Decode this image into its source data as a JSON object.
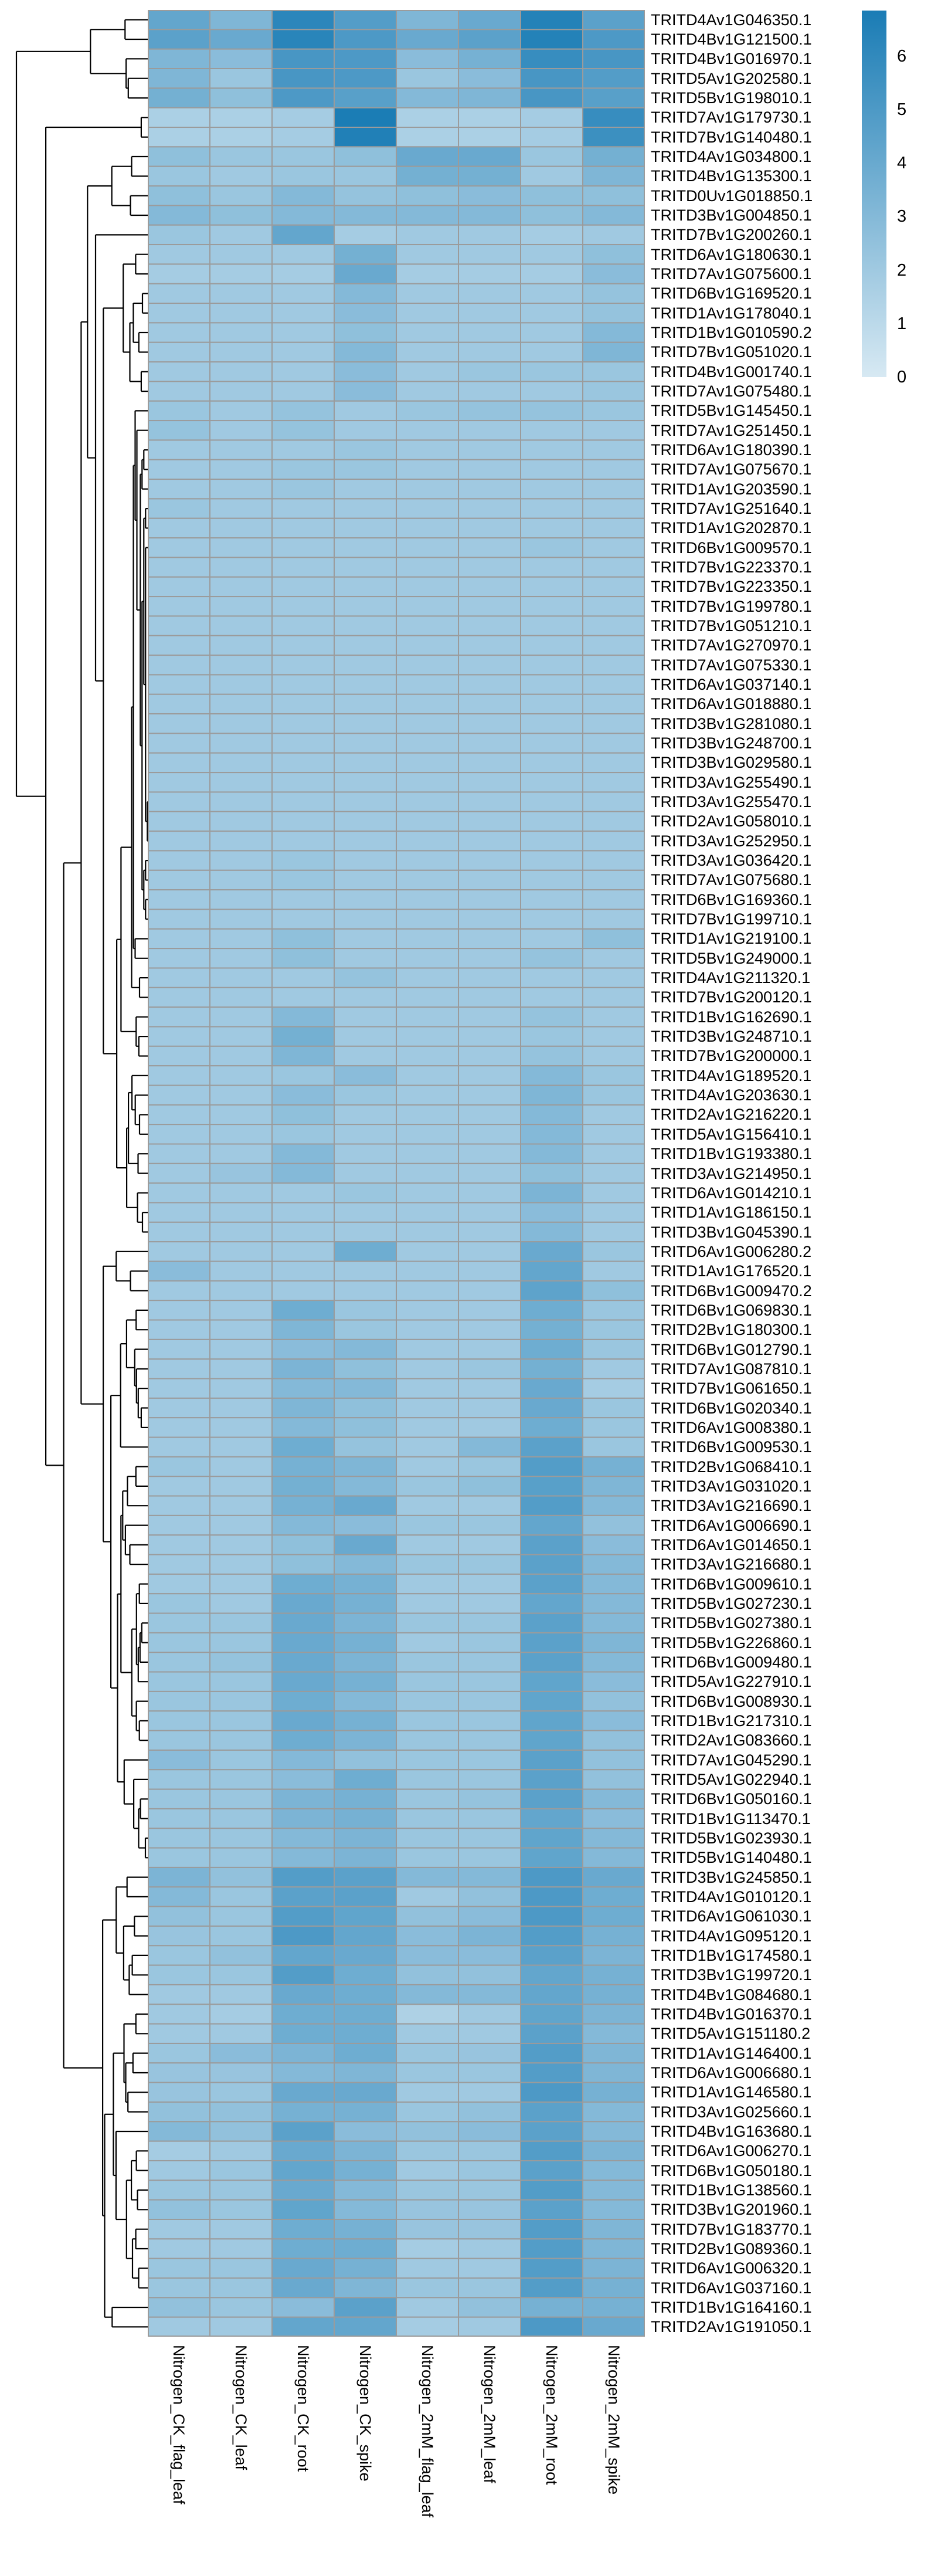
{
  "chart_data": {
    "type": "heatmap",
    "title": "",
    "xlabel": "",
    "ylabel": "",
    "grid": true,
    "grid_line_color": "#9b9b9b",
    "row_dendrogram": true,
    "col_dendrogram": false,
    "legend_position": "right-top",
    "color_scale": {
      "min": 0,
      "max": 6.85,
      "low": "#d7e9f3",
      "high": "#1a7cb5"
    },
    "legend": {
      "ticks": [
        6,
        5,
        4,
        3,
        2,
        1,
        0
      ]
    },
    "columns": [
      "Nitrogen_CK_flag_leaf",
      "Nitrogen_CK_leaf",
      "Nitrogen_CK_root",
      "Nitrogen_CK_spike",
      "Nitrogen_2mM_flag_leaf",
      "Nitrogen_2mM_leaf",
      "Nitrogen_2mM_root",
      "Nitrogen_2mM_spike"
    ],
    "rows": [
      "TRITD4Av1G046350.1",
      "TRITD4Bv1G121500.1",
      "TRITD4Bv1G016970.1",
      "TRITD5Av1G202580.1",
      "TRITD5Bv1G198010.1",
      "TRITD7Av1G179730.1",
      "TRITD7Bv1G140480.1",
      "TRITD4Av1G034800.1",
      "TRITD4Bv1G135300.1",
      "TRITD0Uv1G018850.1",
      "TRITD3Bv1G004850.1",
      "TRITD7Bv1G200260.1",
      "TRITD6Av1G180630.1",
      "TRITD7Av1G075600.1",
      "TRITD6Bv1G169520.1",
      "TRITD1Av1G178040.1",
      "TRITD1Bv1G010590.2",
      "TRITD7Bv1G051020.1",
      "TRITD4Bv1G001740.1",
      "TRITD7Av1G075480.1",
      "TRITD5Bv1G145450.1",
      "TRITD7Av1G251450.1",
      "TRITD6Av1G180390.1",
      "TRITD7Av1G075670.1",
      "TRITD1Av1G203590.1",
      "TRITD7Av1G251640.1",
      "TRITD1Av1G202870.1",
      "TRITD6Bv1G009570.1",
      "TRITD7Bv1G223370.1",
      "TRITD7Bv1G223350.1",
      "TRITD7Bv1G199780.1",
      "TRITD7Bv1G051210.1",
      "TRITD7Av1G270970.1",
      "TRITD7Av1G075330.1",
      "TRITD6Av1G037140.1",
      "TRITD6Av1G018880.1",
      "TRITD3Bv1G281080.1",
      "TRITD3Bv1G248700.1",
      "TRITD3Bv1G029580.1",
      "TRITD3Av1G255490.1",
      "TRITD3Av1G255470.1",
      "TRITD2Av1G058010.1",
      "TRITD3Av1G252950.1",
      "TRITD3Av1G036420.1",
      "TRITD7Av1G075680.1",
      "TRITD6Bv1G169360.1",
      "TRITD7Bv1G199710.1",
      "TRITD1Av1G219100.1",
      "TRITD5Bv1G249000.1",
      "TRITD4Av1G211320.1",
      "TRITD7Bv1G200120.1",
      "TRITD1Bv1G162690.1",
      "TRITD3Bv1G248710.1",
      "TRITD7Bv1G200000.1",
      "TRITD4Av1G189520.1",
      "TRITD4Av1G203630.1",
      "TRITD2Av1G216220.1",
      "TRITD5Av1G156410.1",
      "TRITD1Bv1G193380.1",
      "TRITD3Av1G214950.1",
      "TRITD6Av1G014210.1",
      "TRITD1Av1G186150.1",
      "TRITD3Bv1G045390.1",
      "TRITD6Av1G006280.2",
      "TRITD1Av1G176520.1",
      "TRITD6Bv1G009470.2",
      "TRITD6Bv1G069830.1",
      "TRITD2Bv1G180300.1",
      "TRITD6Bv1G012790.1",
      "TRITD7Av1G087810.1",
      "TRITD7Bv1G061650.1",
      "TRITD6Bv1G020340.1",
      "TRITD6Av1G008380.1",
      "TRITD6Bv1G009530.1",
      "TRITD2Bv1G068410.1",
      "TRITD3Av1G031020.1",
      "TRITD3Av1G216690.1",
      "TRITD6Av1G006690.1",
      "TRITD6Av1G014650.1",
      "TRITD3Av1G216680.1",
      "TRITD6Bv1G009610.1",
      "TRITD5Bv1G027230.1",
      "TRITD5Bv1G027380.1",
      "TRITD5Bv1G226860.1",
      "TRITD6Bv1G009480.1",
      "TRITD5Av1G227910.1",
      "TRITD6Bv1G008930.1",
      "TRITD1Bv1G217310.1",
      "TRITD2Av1G083660.1",
      "TRITD7Av1G045290.1",
      "TRITD5Av1G022940.1",
      "TRITD6Bv1G050160.1",
      "TRITD1Bv1G113470.1",
      "TRITD5Bv1G023930.1",
      "TRITD5Bv1G140480.1",
      "TRITD3Bv1G245850.1",
      "TRITD4Av1G010120.1",
      "TRITD6Av1G061030.1",
      "TRITD4Av1G095120.1",
      "TRITD1Bv1G174580.1",
      "TRITD3Bv1G199720.1",
      "TRITD4Bv1G084680.1",
      "TRITD4Bv1G016370.1",
      "TRITD5Av1G151180.2",
      "TRITD1Av1G146400.1",
      "TRITD6Av1G006680.1",
      "TRITD1Av1G146580.1",
      "TRITD3Av1G025660.1",
      "TRITD4Bv1G163680.1",
      "TRITD6Av1G006270.1",
      "TRITD6Bv1G050180.1",
      "TRITD1Bv1G138560.1",
      "TRITD3Bv1G201960.1",
      "TRITD7Bv1G183770.1",
      "TRITD2Bv1G089360.1",
      "TRITD6Av1G006320.1",
      "TRITD6Av1G037160.1",
      "TRITD1Bv1G164160.1",
      "TRITD2Av1G191050.1"
    ],
    "values": [
      [
        4.2,
        3.2,
        6.2,
        4.8,
        3.2,
        4.0,
        6.5,
        4.5
      ],
      [
        4.5,
        4.0,
        6.3,
        5.0,
        4.0,
        4.5,
        6.5,
        5.0
      ],
      [
        3.2,
        2.8,
        5.2,
        5.0,
        2.8,
        3.5,
        5.8,
        5.2
      ],
      [
        3.2,
        2.2,
        5.2,
        5.0,
        2.2,
        2.8,
        5.2,
        4.8
      ],
      [
        3.6,
        2.6,
        5.0,
        4.6,
        3.0,
        3.2,
        5.2,
        4.6
      ],
      [
        1.6,
        1.6,
        1.8,
        6.8,
        1.6,
        1.6,
        1.8,
        5.8
      ],
      [
        1.6,
        1.6,
        1.8,
        6.6,
        1.6,
        1.6,
        1.8,
        5.6
      ],
      [
        2.6,
        2.2,
        2.2,
        2.6,
        4.0,
        4.0,
        2.2,
        3.6
      ],
      [
        2.2,
        2.0,
        2.2,
        2.2,
        3.6,
        3.6,
        2.0,
        3.2
      ],
      [
        2.6,
        2.2,
        3.0,
        2.4,
        2.6,
        2.8,
        2.6,
        2.6
      ],
      [
        3.0,
        2.6,
        3.0,
        3.0,
        3.0,
        3.0,
        2.6,
        3.0
      ],
      [
        2.2,
        2.0,
        4.2,
        1.8,
        2.0,
        2.0,
        1.8,
        2.0
      ],
      [
        2.0,
        2.0,
        2.0,
        3.6,
        2.0,
        2.0,
        2.0,
        2.6
      ],
      [
        1.8,
        1.8,
        1.8,
        4.0,
        1.8,
        1.8,
        1.8,
        2.8
      ],
      [
        2.0,
        2.0,
        2.0,
        3.0,
        2.0,
        2.0,
        2.0,
        2.4
      ],
      [
        2.0,
        2.0,
        2.0,
        2.8,
        2.0,
        2.0,
        2.0,
        2.4
      ],
      [
        2.0,
        2.0,
        2.0,
        2.6,
        2.0,
        2.0,
        2.0,
        3.0
      ],
      [
        2.0,
        2.0,
        2.0,
        3.0,
        2.0,
        2.0,
        2.0,
        3.2
      ],
      [
        2.0,
        2.0,
        2.0,
        2.8,
        2.0,
        2.2,
        2.2,
        2.2
      ],
      [
        2.0,
        2.0,
        2.0,
        2.8,
        2.0,
        2.0,
        2.0,
        2.2
      ],
      [
        2.2,
        2.0,
        2.4,
        2.0,
        2.2,
        2.4,
        2.4,
        2.2
      ],
      [
        2.4,
        2.0,
        2.4,
        2.0,
        2.0,
        2.0,
        2.0,
        2.0
      ],
      [
        2.0,
        2.0,
        2.0,
        2.2,
        2.0,
        2.0,
        2.0,
        2.0
      ],
      [
        2.0,
        2.0,
        2.2,
        2.2,
        2.0,
        2.0,
        2.0,
        2.0
      ],
      [
        2.0,
        2.0,
        2.2,
        2.0,
        2.0,
        2.0,
        2.0,
        2.0
      ],
      [
        2.2,
        2.0,
        2.0,
        2.0,
        2.0,
        2.0,
        2.0,
        2.0
      ],
      [
        2.0,
        2.0,
        2.0,
        2.0,
        2.0,
        2.0,
        2.0,
        2.0
      ],
      [
        2.0,
        2.0,
        2.0,
        2.0,
        2.0,
        2.0,
        2.2,
        2.0
      ],
      [
        2.0,
        2.0,
        2.0,
        2.0,
        2.0,
        2.0,
        2.0,
        2.0
      ],
      [
        2.0,
        2.0,
        2.0,
        2.0,
        2.0,
        2.0,
        2.0,
        2.0
      ],
      [
        2.0,
        2.0,
        2.0,
        2.0,
        2.0,
        2.0,
        2.0,
        2.0
      ],
      [
        2.0,
        2.0,
        2.0,
        2.0,
        2.0,
        2.0,
        2.0,
        2.0
      ],
      [
        2.0,
        2.0,
        2.0,
        2.0,
        2.0,
        2.0,
        2.0,
        2.0
      ],
      [
        2.0,
        2.0,
        2.0,
        2.0,
        2.0,
        2.0,
        2.0,
        2.0
      ],
      [
        2.0,
        2.0,
        2.0,
        2.0,
        2.0,
        2.0,
        2.0,
        2.0
      ],
      [
        2.0,
        2.0,
        2.0,
        2.0,
        2.0,
        2.0,
        2.0,
        2.0
      ],
      [
        2.0,
        2.0,
        2.0,
        2.0,
        2.0,
        2.0,
        2.0,
        2.0
      ],
      [
        2.0,
        2.0,
        2.0,
        2.0,
        2.0,
        2.0,
        2.0,
        2.0
      ],
      [
        2.0,
        2.0,
        2.0,
        2.0,
        2.0,
        2.0,
        2.0,
        2.0
      ],
      [
        2.0,
        2.0,
        2.0,
        2.0,
        2.0,
        2.0,
        2.0,
        2.0
      ],
      [
        2.0,
        2.0,
        2.0,
        2.0,
        2.0,
        2.0,
        2.0,
        2.0
      ],
      [
        2.0,
        2.0,
        2.0,
        2.0,
        2.0,
        2.0,
        2.0,
        2.0
      ],
      [
        2.0,
        2.0,
        2.0,
        2.0,
        2.0,
        2.0,
        2.0,
        2.0
      ],
      [
        2.0,
        2.0,
        2.2,
        2.0,
        2.0,
        2.0,
        2.0,
        2.0
      ],
      [
        2.0,
        2.0,
        2.2,
        2.0,
        2.0,
        2.0,
        2.0,
        2.0
      ],
      [
        2.0,
        2.0,
        2.0,
        2.0,
        2.0,
        2.0,
        2.0,
        2.0
      ],
      [
        2.0,
        2.0,
        2.0,
        2.0,
        2.0,
        2.0,
        2.0,
        2.0
      ],
      [
        2.0,
        2.0,
        2.6,
        2.0,
        2.0,
        2.0,
        2.0,
        2.6
      ],
      [
        2.0,
        2.0,
        2.6,
        2.0,
        2.0,
        2.0,
        2.4,
        2.0
      ],
      [
        2.0,
        2.0,
        2.0,
        2.4,
        2.0,
        2.0,
        2.0,
        2.0
      ],
      [
        2.0,
        2.0,
        2.0,
        2.0,
        2.0,
        2.0,
        2.0,
        2.0
      ],
      [
        2.0,
        2.0,
        3.0,
        2.0,
        2.0,
        2.0,
        2.4,
        2.0
      ],
      [
        2.0,
        2.0,
        3.6,
        2.0,
        2.0,
        2.0,
        2.2,
        2.0
      ],
      [
        2.0,
        2.0,
        3.2,
        2.0,
        2.0,
        2.0,
        2.4,
        2.0
      ],
      [
        2.0,
        2.0,
        2.2,
        2.8,
        2.0,
        2.0,
        3.0,
        2.2
      ],
      [
        2.0,
        2.0,
        2.8,
        2.2,
        2.0,
        2.0,
        3.2,
        2.2
      ],
      [
        2.0,
        2.0,
        2.6,
        2.0,
        2.0,
        2.0,
        3.0,
        2.0
      ],
      [
        2.0,
        2.0,
        2.2,
        2.0,
        2.0,
        2.0,
        3.0,
        2.0
      ],
      [
        2.0,
        2.0,
        3.0,
        2.0,
        2.0,
        2.0,
        3.0,
        2.0
      ],
      [
        2.0,
        2.3,
        3.0,
        2.0,
        2.0,
        2.0,
        2.6,
        2.0
      ],
      [
        2.0,
        2.0,
        2.0,
        2.2,
        2.0,
        2.0,
        3.3,
        2.0
      ],
      [
        2.0,
        2.0,
        2.0,
        2.0,
        2.0,
        2.0,
        2.8,
        2.0
      ],
      [
        2.0,
        2.0,
        2.0,
        2.0,
        2.0,
        2.0,
        3.0,
        2.0
      ],
      [
        2.0,
        2.0,
        2.0,
        3.8,
        2.0,
        2.0,
        4.0,
        2.2
      ],
      [
        2.8,
        2.0,
        2.0,
        2.0,
        2.0,
        2.0,
        4.2,
        2.0
      ],
      [
        2.0,
        2.0,
        2.0,
        2.0,
        2.0,
        2.0,
        4.4,
        2.6
      ],
      [
        2.0,
        2.0,
        3.8,
        2.2,
        2.0,
        2.0,
        3.8,
        2.2
      ],
      [
        2.0,
        2.0,
        3.2,
        2.2,
        2.0,
        2.0,
        3.6,
        2.2
      ],
      [
        2.0,
        2.0,
        2.8,
        3.0,
        2.0,
        2.0,
        3.8,
        2.2
      ],
      [
        2.0,
        2.0,
        3.3,
        2.6,
        2.0,
        2.2,
        3.6,
        2.0
      ],
      [
        2.0,
        2.0,
        3.0,
        3.0,
        2.0,
        2.0,
        4.0,
        1.8
      ],
      [
        2.0,
        2.0,
        3.2,
        2.6,
        2.0,
        2.0,
        4.0,
        2.2
      ],
      [
        2.0,
        2.0,
        3.0,
        2.6,
        2.0,
        2.0,
        3.8,
        2.2
      ],
      [
        2.0,
        2.0,
        3.8,
        2.4,
        2.0,
        3.0,
        4.5,
        2.2
      ],
      [
        2.2,
        2.0,
        3.5,
        3.2,
        2.0,
        2.2,
        4.8,
        3.5
      ],
      [
        2.0,
        2.0,
        3.6,
        3.0,
        2.2,
        2.6,
        4.6,
        3.2
      ],
      [
        2.0,
        2.0,
        3.5,
        4.0,
        2.0,
        2.0,
        4.8,
        3.0
      ],
      [
        2.0,
        2.0,
        3.0,
        2.8,
        2.2,
        2.2,
        4.2,
        2.5
      ],
      [
        2.0,
        2.0,
        2.6,
        4.0,
        2.0,
        2.0,
        4.5,
        2.8
      ],
      [
        2.0,
        2.0,
        2.6,
        3.0,
        2.2,
        2.2,
        4.5,
        3.0
      ],
      [
        2.0,
        2.0,
        3.8,
        3.5,
        2.0,
        2.0,
        4.5,
        3.0
      ],
      [
        2.2,
        2.0,
        4.0,
        3.5,
        2.0,
        2.0,
        4.2,
        3.0
      ],
      [
        2.2,
        2.2,
        4.0,
        3.3,
        2.2,
        2.2,
        4.5,
        3.0
      ],
      [
        2.2,
        2.2,
        4.0,
        3.5,
        2.0,
        2.2,
        4.5,
        3.2
      ],
      [
        2.2,
        2.4,
        4.0,
        3.3,
        2.2,
        2.2,
        4.5,
        3.0
      ],
      [
        2.2,
        2.2,
        4.0,
        3.5,
        2.2,
        2.2,
        4.3,
        2.8
      ],
      [
        2.2,
        2.2,
        3.8,
        3.0,
        2.2,
        2.2,
        4.3,
        2.5
      ],
      [
        2.2,
        2.2,
        4.0,
        3.5,
        2.2,
        2.2,
        4.3,
        2.8
      ],
      [
        2.2,
        2.2,
        3.8,
        3.3,
        2.2,
        2.2,
        4.3,
        2.5
      ],
      [
        2.8,
        2.2,
        3.0,
        2.5,
        2.2,
        2.2,
        4.5,
        2.5
      ],
      [
        2.2,
        2.2,
        2.8,
        3.8,
        2.2,
        2.2,
        4.5,
        2.5
      ],
      [
        2.2,
        2.2,
        3.3,
        3.5,
        2.2,
        2.4,
        4.5,
        3.0
      ],
      [
        2.2,
        2.2,
        3.3,
        3.5,
        2.2,
        2.2,
        4.2,
        2.8
      ],
      [
        2.2,
        2.2,
        3.0,
        3.3,
        2.2,
        2.2,
        4.3,
        3.0
      ],
      [
        2.2,
        2.2,
        3.0,
        3.3,
        2.2,
        2.2,
        4.3,
        3.0
      ],
      [
        3.3,
        2.5,
        4.8,
        4.5,
        3.0,
        3.0,
        5.0,
        4.0
      ],
      [
        3.0,
        2.2,
        4.5,
        4.5,
        2.0,
        2.5,
        5.0,
        3.8
      ],
      [
        2.5,
        2.2,
        4.8,
        4.3,
        2.5,
        2.8,
        5.0,
        3.8
      ],
      [
        2.3,
        2.2,
        5.0,
        4.2,
        2.8,
        3.3,
        4.8,
        3.5
      ],
      [
        2.2,
        2.5,
        4.2,
        4.0,
        2.8,
        2.8,
        4.5,
        3.3
      ],
      [
        2.2,
        2.2,
        4.8,
        3.8,
        2.5,
        2.5,
        4.2,
        3.5
      ],
      [
        2.0,
        2.0,
        4.0,
        3.8,
        3.0,
        3.0,
        4.2,
        3.5
      ],
      [
        2.0,
        1.8,
        3.8,
        3.8,
        1.5,
        2.0,
        4.3,
        3.3
      ],
      [
        2.0,
        2.0,
        3.8,
        3.8,
        2.0,
        2.0,
        4.5,
        3.0
      ],
      [
        2.2,
        2.8,
        3.3,
        3.8,
        2.2,
        2.3,
        4.8,
        3.2
      ],
      [
        2.3,
        2.3,
        3.0,
        3.2,
        2.2,
        2.2,
        4.8,
        3.2
      ],
      [
        2.3,
        2.2,
        4.0,
        4.0,
        2.0,
        2.0,
        5.0,
        3.5
      ],
      [
        2.5,
        2.5,
        3.5,
        3.5,
        2.2,
        2.5,
        4.5,
        3.0
      ],
      [
        3.0,
        2.5,
        4.5,
        2.8,
        2.5,
        2.8,
        4.5,
        3.0
      ],
      [
        1.8,
        2.0,
        4.0,
        3.3,
        2.2,
        2.2,
        4.8,
        3.3
      ],
      [
        2.0,
        2.2,
        4.2,
        3.5,
        2.0,
        2.2,
        4.5,
        3.0
      ],
      [
        2.2,
        2.2,
        4.0,
        3.0,
        2.2,
        2.2,
        4.8,
        3.0
      ],
      [
        2.5,
        2.2,
        4.3,
        3.0,
        2.3,
        2.3,
        4.5,
        3.0
      ],
      [
        2.0,
        2.0,
        3.8,
        3.5,
        2.3,
        2.3,
        4.8,
        3.2
      ],
      [
        2.0,
        2.0,
        3.8,
        3.8,
        1.8,
        2.0,
        4.8,
        3.2
      ],
      [
        2.2,
        2.2,
        4.0,
        3.5,
        2.0,
        2.0,
        4.8,
        3.3
      ],
      [
        2.2,
        2.2,
        4.0,
        3.2,
        2.2,
        2.2,
        4.8,
        3.5
      ],
      [
        2.5,
        2.2,
        2.8,
        4.5,
        2.0,
        2.5,
        3.5,
        3.5
      ],
      [
        2.0,
        2.0,
        4.2,
        4.2,
        1.8,
        2.0,
        5.0,
        4.0
      ]
    ]
  }
}
